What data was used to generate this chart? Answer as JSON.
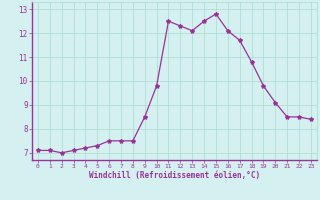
{
  "x": [
    0,
    1,
    2,
    3,
    4,
    5,
    6,
    7,
    8,
    9,
    10,
    11,
    12,
    13,
    14,
    15,
    16,
    17,
    18,
    19,
    20,
    21,
    22,
    23
  ],
  "y": [
    7.1,
    7.1,
    7.0,
    7.1,
    7.2,
    7.3,
    7.5,
    7.5,
    7.5,
    8.5,
    9.8,
    12.5,
    12.3,
    12.1,
    12.5,
    12.8,
    12.1,
    11.7,
    10.8,
    9.8,
    9.1,
    8.5,
    8.5,
    8.4
  ],
  "line_color": "#993399",
  "marker": "*",
  "marker_size": 3,
  "bg_color": "#d4f0f0",
  "grid_color": "#aaddcc",
  "xlabel": "Windchill (Refroidissement éolien,°C)",
  "xlabel_color": "#993399",
  "tick_color": "#993399",
  "spine_color": "#993399",
  "xlim": [
    -0.5,
    23.5
  ],
  "ylim": [
    6.7,
    13.3
  ],
  "yticks": [
    7,
    8,
    9,
    10,
    11,
    12,
    13
  ],
  "xticks": [
    0,
    1,
    2,
    3,
    4,
    5,
    6,
    7,
    8,
    9,
    10,
    11,
    12,
    13,
    14,
    15,
    16,
    17,
    18,
    19,
    20,
    21,
    22,
    23
  ]
}
